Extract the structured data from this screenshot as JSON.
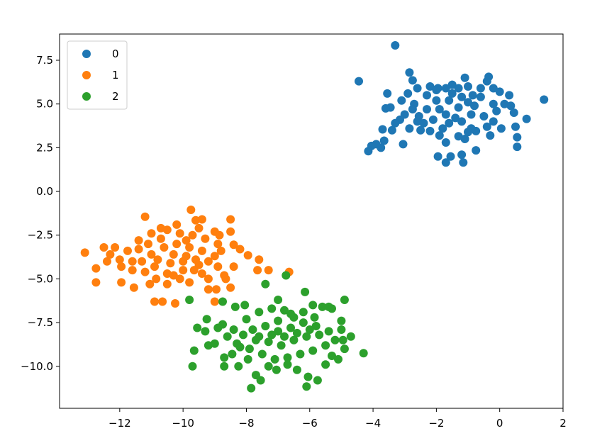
{
  "chart_data": {
    "type": "scatter",
    "title": "",
    "xlabel": "",
    "ylabel": "",
    "xlim": [
      -13.9,
      2.0
    ],
    "ylim": [
      -12.4,
      9.0
    ],
    "xticks": [
      -12,
      -10,
      -8,
      -6,
      -4,
      -2,
      0,
      2
    ],
    "yticks": [
      7.5,
      5.0,
      2.5,
      0.0,
      -2.5,
      -5.0,
      -7.5,
      -10.0
    ],
    "xtick_labels": [
      "−12",
      "−10",
      "−8",
      "−6",
      "−4",
      "−2",
      "0",
      "2"
    ],
    "ytick_labels": [
      "7.5",
      "5.0",
      "2.5",
      "0.0",
      "−2.5",
      "−5.0",
      "−7.5",
      "−10.0"
    ],
    "grid": false,
    "legend_position": "top-left",
    "series": [
      {
        "name": "0",
        "color": "#1f77b4",
        "points": [
          [
            -3.3,
            8.35
          ],
          [
            -4.45,
            6.3
          ],
          [
            -2.85,
            6.8
          ],
          [
            -2.75,
            6.35
          ],
          [
            -1.1,
            6.5
          ],
          [
            -0.35,
            6.55
          ],
          [
            -0.4,
            6.3
          ],
          [
            -3.55,
            5.6
          ],
          [
            -3.45,
            4.8
          ],
          [
            -3.6,
            4.75
          ],
          [
            -3.1,
            5.2
          ],
          [
            -3.0,
            4.4
          ],
          [
            -2.6,
            5.9
          ],
          [
            -2.2,
            6.0
          ],
          [
            -1.95,
            5.9
          ],
          [
            -1.5,
            6.1
          ],
          [
            -1.0,
            6.0
          ],
          [
            -0.6,
            5.9
          ],
          [
            -0.2,
            5.9
          ],
          [
            0.0,
            5.7
          ],
          [
            0.3,
            5.5
          ],
          [
            0.35,
            4.9
          ],
          [
            0.45,
            4.5
          ],
          [
            0.5,
            3.7
          ],
          [
            0.55,
            3.1
          ],
          [
            0.55,
            2.55
          ],
          [
            0.85,
            4.15
          ],
          [
            1.4,
            5.25
          ],
          [
            -0.75,
            3.45
          ],
          [
            -0.3,
            3.2
          ],
          [
            -0.75,
            2.35
          ],
          [
            -1.1,
            3.0
          ],
          [
            -1.2,
            2.1
          ],
          [
            -1.15,
            1.65
          ],
          [
            -1.7,
            1.65
          ],
          [
            -1.55,
            2.0
          ],
          [
            -1.95,
            2.0
          ],
          [
            -3.05,
            2.7
          ],
          [
            -3.75,
            2.5
          ],
          [
            -3.65,
            2.9
          ],
          [
            -4.05,
            2.6
          ],
          [
            -4.15,
            2.3
          ],
          [
            -3.9,
            2.7
          ],
          [
            -3.7,
            3.55
          ],
          [
            -3.4,
            3.5
          ],
          [
            -2.85,
            3.6
          ],
          [
            -2.4,
            3.9
          ],
          [
            -2.5,
            3.5
          ],
          [
            -1.9,
            3.2
          ],
          [
            -1.7,
            2.8
          ],
          [
            -1.3,
            3.15
          ],
          [
            -0.9,
            3.6
          ],
          [
            -0.5,
            4.3
          ],
          [
            -0.2,
            4.0
          ],
          [
            0.05,
            3.6
          ],
          [
            -0.2,
            5.0
          ],
          [
            -0.8,
            4.9
          ],
          [
            -1.2,
            5.4
          ],
          [
            -1.6,
            5.2
          ],
          [
            -1.9,
            4.7
          ],
          [
            -2.3,
            5.5
          ],
          [
            -2.7,
            5.0
          ],
          [
            -2.55,
            4.3
          ],
          [
            -2.1,
            4.1
          ],
          [
            -1.6,
            3.9
          ],
          [
            -1.2,
            4.0
          ],
          [
            -0.9,
            4.4
          ],
          [
            -1.3,
            4.8
          ],
          [
            -1.7,
            4.4
          ],
          [
            -2.0,
            5.2
          ],
          [
            -1.5,
            5.6
          ],
          [
            -1.0,
            5.1
          ],
          [
            -0.6,
            5.4
          ],
          [
            -2.9,
            5.6
          ],
          [
            -2.3,
            4.7
          ],
          [
            -1.8,
            3.6
          ],
          [
            -1.4,
            4.2
          ],
          [
            -2.6,
            4.0
          ],
          [
            -3.15,
            4.1
          ],
          [
            -0.4,
            3.7
          ],
          [
            -1.0,
            3.4
          ],
          [
            -2.2,
            3.45
          ],
          [
            -2.0,
            5.8
          ],
          [
            -1.7,
            5.9
          ],
          [
            -1.3,
            5.9
          ],
          [
            -0.85,
            5.5
          ],
          [
            -2.75,
            4.7
          ],
          [
            -3.3,
            3.9
          ],
          [
            -0.1,
            4.6
          ],
          [
            0.15,
            5.0
          ]
        ]
      },
      {
        "name": "1",
        "color": "#ff7f0e",
        "points": [
          [
            -13.1,
            -3.5
          ],
          [
            -12.75,
            -4.4
          ],
          [
            -12.75,
            -5.2
          ],
          [
            -12.5,
            -3.2
          ],
          [
            -12.3,
            -3.6
          ],
          [
            -12.15,
            -3.2
          ],
          [
            -11.95,
            -4.3
          ],
          [
            -11.95,
            -5.2
          ],
          [
            -11.6,
            -4.5
          ],
          [
            -11.55,
            -5.5
          ],
          [
            -11.4,
            -3.3
          ],
          [
            -11.2,
            -1.45
          ],
          [
            -11.0,
            -2.4
          ],
          [
            -11.2,
            -4.6
          ],
          [
            -11.05,
            -5.3
          ],
          [
            -10.9,
            -6.3
          ],
          [
            -10.7,
            -2.1
          ],
          [
            -10.65,
            -6.3
          ],
          [
            -10.5,
            -2.2
          ],
          [
            -10.2,
            -1.9
          ],
          [
            -10.25,
            -6.4
          ],
          [
            -9.75,
            -1.05
          ],
          [
            -9.9,
            -2.8
          ],
          [
            -9.6,
            -1.65
          ],
          [
            -9.4,
            -1.6
          ],
          [
            -9.0,
            -2.3
          ],
          [
            -8.85,
            -2.5
          ],
          [
            -8.5,
            -1.6
          ],
          [
            -8.5,
            -2.3
          ],
          [
            -8.4,
            -3.05
          ],
          [
            -8.4,
            -4.3
          ],
          [
            -8.2,
            -3.3
          ],
          [
            -7.95,
            -3.65
          ],
          [
            -7.65,
            -4.5
          ],
          [
            -7.6,
            -3.9
          ],
          [
            -7.3,
            -4.5
          ],
          [
            -6.65,
            -4.6
          ],
          [
            -8.65,
            -5.0
          ],
          [
            -8.5,
            -5.5
          ],
          [
            -8.95,
            -5.6
          ],
          [
            -9.2,
            -5.6
          ],
          [
            -9.0,
            -6.3
          ],
          [
            -9.4,
            -4.7
          ],
          [
            -9.8,
            -5.2
          ],
          [
            -10.1,
            -5.0
          ],
          [
            -10.5,
            -4.7
          ],
          [
            -10.9,
            -4.3
          ],
          [
            -11.3,
            -4.0
          ],
          [
            -11.0,
            -3.6
          ],
          [
            -10.6,
            -3.2
          ],
          [
            -10.2,
            -3.0
          ],
          [
            -9.8,
            -3.2
          ],
          [
            -9.4,
            -3.4
          ],
          [
            -9.0,
            -3.7
          ],
          [
            -8.9,
            -4.3
          ],
          [
            -9.5,
            -4.2
          ],
          [
            -10.0,
            -4.0
          ],
          [
            -10.4,
            -4.1
          ],
          [
            -10.8,
            -3.9
          ],
          [
            -10.3,
            -3.6
          ],
          [
            -9.9,
            -3.7
          ],
          [
            -9.6,
            -3.9
          ],
          [
            -9.2,
            -4.0
          ],
          [
            -8.8,
            -3.4
          ],
          [
            -9.3,
            -2.7
          ],
          [
            -9.7,
            -2.5
          ],
          [
            -10.1,
            -2.4
          ],
          [
            -10.7,
            -2.7
          ],
          [
            -11.1,
            -3.0
          ],
          [
            -11.6,
            -4.0
          ],
          [
            -11.75,
            -3.4
          ],
          [
            -12.0,
            -3.9
          ],
          [
            -12.4,
            -4.0
          ],
          [
            -10.5,
            -5.3
          ],
          [
            -9.65,
            -4.5
          ],
          [
            -8.7,
            -4.8
          ],
          [
            -8.9,
            -3.0
          ],
          [
            -10.0,
            -4.5
          ],
          [
            -10.3,
            -4.8
          ],
          [
            -9.2,
            -5.0
          ],
          [
            -11.4,
            -2.8
          ],
          [
            -10.85,
            -5.0
          ],
          [
            -9.5,
            -2.1
          ]
        ]
      },
      {
        "name": "2",
        "color": "#2ca02c",
        "points": [
          [
            -9.8,
            -6.2
          ],
          [
            -9.55,
            -7.8
          ],
          [
            -9.65,
            -9.1
          ],
          [
            -9.7,
            -10.0
          ],
          [
            -9.25,
            -7.3
          ],
          [
            -9.2,
            -8.8
          ],
          [
            -9.0,
            -8.7
          ],
          [
            -8.75,
            -6.3
          ],
          [
            -8.75,
            -7.6
          ],
          [
            -8.7,
            -9.5
          ],
          [
            -8.7,
            -10.0
          ],
          [
            -8.35,
            -6.6
          ],
          [
            -8.05,
            -6.5
          ],
          [
            -8.2,
            -8.9
          ],
          [
            -8.25,
            -10.0
          ],
          [
            -7.85,
            -11.25
          ],
          [
            -7.7,
            -10.5
          ],
          [
            -7.55,
            -10.8
          ],
          [
            -7.4,
            -5.3
          ],
          [
            -7.0,
            -6.2
          ],
          [
            -6.75,
            -4.8
          ],
          [
            -7.05,
            -10.2
          ],
          [
            -6.7,
            -9.9
          ],
          [
            -6.15,
            -5.75
          ],
          [
            -6.05,
            -10.6
          ],
          [
            -6.1,
            -11.15
          ],
          [
            -5.75,
            -10.8
          ],
          [
            -5.5,
            -9.9
          ],
          [
            -5.4,
            -6.6
          ],
          [
            -5.1,
            -9.6
          ],
          [
            -4.9,
            -6.2
          ],
          [
            -4.95,
            -8.5
          ],
          [
            -4.9,
            -9.0
          ],
          [
            -4.7,
            -8.3
          ],
          [
            -4.3,
            -9.25
          ],
          [
            -5.0,
            -7.4
          ],
          [
            -5.3,
            -6.7
          ],
          [
            -5.6,
            -6.6
          ],
          [
            -5.9,
            -6.5
          ],
          [
            -6.2,
            -6.9
          ],
          [
            -6.5,
            -7.2
          ],
          [
            -6.8,
            -6.8
          ],
          [
            -7.2,
            -6.7
          ],
          [
            -7.6,
            -6.9
          ],
          [
            -8.0,
            -7.3
          ],
          [
            -8.4,
            -7.9
          ],
          [
            -8.6,
            -8.3
          ],
          [
            -8.3,
            -8.7
          ],
          [
            -7.9,
            -9.0
          ],
          [
            -7.5,
            -9.3
          ],
          [
            -7.1,
            -9.6
          ],
          [
            -6.7,
            -9.5
          ],
          [
            -6.3,
            -9.3
          ],
          [
            -5.9,
            -9.1
          ],
          [
            -5.5,
            -8.8
          ],
          [
            -5.2,
            -8.5
          ],
          [
            -5.4,
            -8.0
          ],
          [
            -5.8,
            -7.7
          ],
          [
            -6.2,
            -7.5
          ],
          [
            -6.6,
            -7.8
          ],
          [
            -7.0,
            -8.0
          ],
          [
            -7.4,
            -7.7
          ],
          [
            -7.8,
            -7.9
          ],
          [
            -8.1,
            -8.2
          ],
          [
            -7.7,
            -8.5
          ],
          [
            -7.3,
            -8.6
          ],
          [
            -6.9,
            -8.8
          ],
          [
            -6.5,
            -8.5
          ],
          [
            -6.1,
            -8.3
          ],
          [
            -5.7,
            -8.2
          ],
          [
            -6.0,
            -7.9
          ],
          [
            -6.4,
            -8.1
          ],
          [
            -6.8,
            -8.3
          ],
          [
            -7.2,
            -8.2
          ],
          [
            -7.6,
            -8.3
          ],
          [
            -7.0,
            -7.4
          ],
          [
            -6.6,
            -7.0
          ],
          [
            -5.85,
            -7.2
          ],
          [
            -8.9,
            -7.8
          ],
          [
            -9.3,
            -8.0
          ],
          [
            -8.45,
            -9.3
          ],
          [
            -7.95,
            -9.6
          ],
          [
            -5.3,
            -9.4
          ],
          [
            -6.4,
            -10.2
          ],
          [
            -7.3,
            -10.0
          ],
          [
            -5.0,
            -7.9
          ]
        ]
      }
    ]
  }
}
